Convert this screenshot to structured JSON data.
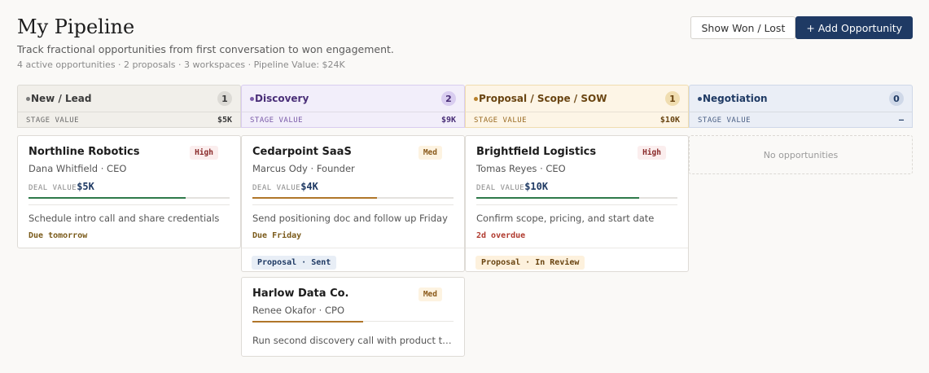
{
  "header": {
    "title": "My Pipeline",
    "subtitle": "Track fractional opportunities from first conversation to won engagement.",
    "meta": "4 active opportunities · 2 proposals · 3 workspaces · Pipeline Value: $24K"
  },
  "actions": {
    "show_won_lost": "Show Won / Lost",
    "add_opportunity": "+ Add Opportunity"
  },
  "stage_value_label": "STAGE VALUE",
  "deal_value_label": "DEAL VALUE",
  "columns": [
    {
      "name": "New / Lead",
      "count": "1",
      "stage_value": "$5K",
      "colors": {
        "head_bg": "#f1efea",
        "dot": "#7a7a7a",
        "text": "#3a3a3a",
        "count_bg": "#dcdad5",
        "sub_text": "#6a6a6a"
      }
    },
    {
      "name": "Discovery",
      "count": "2",
      "stage_value": "$9K",
      "colors": {
        "head_bg": "#f2eefa",
        "dot": "#7a5aa8",
        "text": "#4a2f78",
        "count_bg": "#d9cdf0",
        "sub_text": "#7a5aa8"
      }
    },
    {
      "name": "Proposal / Scope / SOW",
      "count": "1",
      "stage_value": "$10K",
      "colors": {
        "head_bg": "#fdf5e6",
        "dot": "#b8802a",
        "text": "#6a4512",
        "count_bg": "#f0ddb0",
        "sub_text": "#9a6a22"
      }
    },
    {
      "name": "Negotiation",
      "count": "0",
      "stage_value": "–",
      "colors": {
        "head_bg": "#eaeef6",
        "dot": "#2f4a74",
        "text": "#1f3a64",
        "count_bg": "#cfd8e8",
        "sub_text": "#4a5f84"
      }
    }
  ],
  "cards": {
    "northline": {
      "name": "Northline Robotics",
      "priority": "High",
      "contact": "Dana Whitfield · CEO",
      "deal_value": "$5K",
      "progress": 0.78,
      "bar_color": "#2f7a4a",
      "task": "Schedule intro call and share credentials",
      "due": "Due tomorrow",
      "due_color": "#7a5a1a"
    },
    "cedarpoint": {
      "name": "Cedarpoint SaaS",
      "priority": "Med",
      "contact": "Marcus Ody · Founder",
      "deal_value": "$4K",
      "progress": 0.62,
      "bar_color": "#b0762a",
      "task": "Send positioning doc and follow up Friday",
      "due": "Due Friday",
      "due_color": "#7a5a1a",
      "tag": "Proposal · Sent",
      "tag_bg": "#e8eef6",
      "tag_color": "#1f3a64"
    },
    "brightfield": {
      "name": "Brightfield Logistics",
      "priority": "High",
      "contact": "Tomas Reyes · CEO",
      "deal_value": "$10K",
      "progress": 0.81,
      "bar_color": "#2f7a4a",
      "task": "Confirm scope, pricing, and start date",
      "due": "2d overdue",
      "due_color": "#b03a2e",
      "tag": "Proposal · In Review",
      "tag_bg": "#fdf1dd",
      "tag_color": "#6a4512"
    },
    "harlow": {
      "name": "Harlow Data Co.",
      "priority": "Med",
      "contact": "Renee Okafor · CPO",
      "progress": 0.55,
      "bar_color": "#b0762a",
      "task": "Run second discovery call with product te..."
    }
  },
  "empty_negotiation": "No opportunities"
}
